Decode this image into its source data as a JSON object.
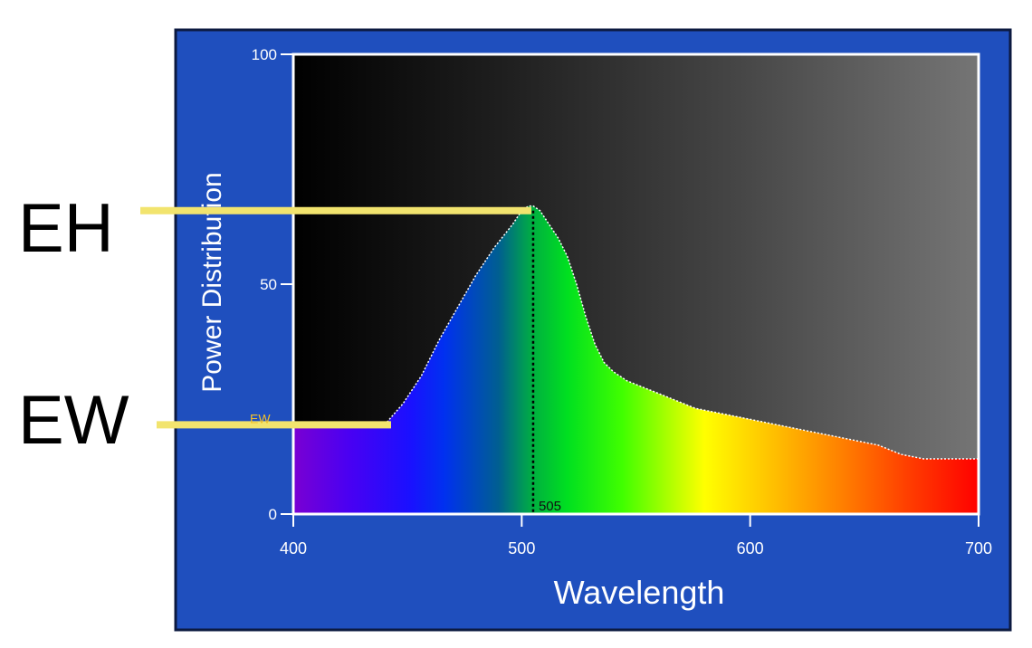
{
  "annotations": {
    "eh_label": "EH",
    "ew_label": "EW",
    "ew_marker_text": "EW",
    "peak_marker_text": "505",
    "highlight_color": "#f2e46e"
  },
  "colors": {
    "panel_blue": "#1f4fbe",
    "plot_border": "#ffffff"
  },
  "chart_data": {
    "type": "area",
    "title": "",
    "xlabel": "Wavelength",
    "ylabel": "Power Distribution",
    "xlim": [
      400,
      700
    ],
    "ylim": [
      0,
      100
    ],
    "x_ticks": [
      "400",
      "500",
      "600",
      "700"
    ],
    "y_ticks": [
      "0",
      "50",
      "100"
    ],
    "grid": false,
    "peak_wavelength": 505,
    "ew_level": 21,
    "eh_level": 66,
    "curve": {
      "x": [
        400,
        416,
        432,
        441,
        448,
        456,
        464,
        472,
        480,
        488,
        496,
        500,
        503,
        505,
        508,
        512,
        516,
        520,
        524,
        528,
        532,
        536,
        540,
        546,
        556,
        566,
        576,
        586,
        596,
        606,
        616,
        626,
        636,
        646,
        656,
        666,
        676,
        686,
        700
      ],
      "y": [
        19,
        19,
        19,
        20,
        24,
        30,
        38,
        45,
        52,
        58,
        63,
        66,
        67,
        67,
        66,
        63,
        60,
        56,
        50,
        43,
        37,
        33,
        31,
        29,
        27,
        25,
        23,
        22,
        21,
        20,
        19,
        18,
        17,
        16,
        15,
        13,
        12,
        12,
        12
      ]
    }
  }
}
